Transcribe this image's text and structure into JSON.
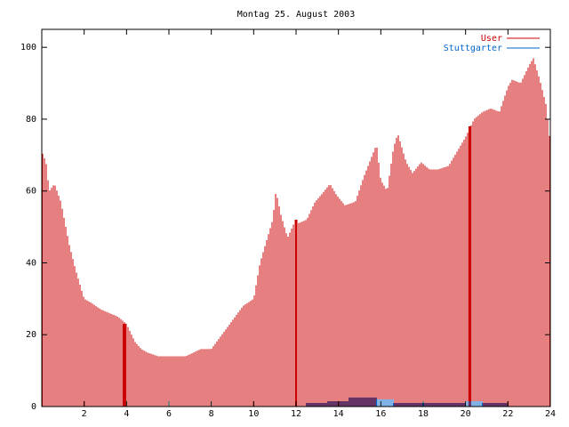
{
  "chart_data": {
    "type": "bar",
    "title": "Montag 25. August 2003",
    "xlabel": "",
    "ylabel": "",
    "xlim": [
      0,
      24
    ],
    "ylim": [
      0,
      105
    ],
    "x_ticks": [
      2,
      4,
      6,
      8,
      10,
      12,
      14,
      16,
      18,
      20,
      22,
      24
    ],
    "y_ticks": [
      0,
      20,
      40,
      60,
      80,
      100
    ],
    "grid": false,
    "legend_position": "top-right",
    "colors": {
      "User": "#cc0000",
      "Stuttgarter": "#0066cc",
      "frame": "#000000"
    },
    "series": [
      {
        "name": "User",
        "style": "impulses",
        "knots": [
          [
            0.0,
            71
          ],
          [
            0.2,
            68
          ],
          [
            0.35,
            60
          ],
          [
            0.6,
            62
          ],
          [
            0.9,
            57
          ],
          [
            1.3,
            45
          ],
          [
            1.6,
            38
          ],
          [
            2.0,
            30
          ],
          [
            2.3,
            29
          ],
          [
            2.8,
            27
          ],
          [
            3.2,
            26
          ],
          [
            3.6,
            25
          ],
          [
            4.0,
            23
          ],
          [
            4.4,
            18
          ],
          [
            4.7,
            16
          ],
          [
            5.0,
            15
          ],
          [
            5.5,
            14
          ],
          [
            6.0,
            14
          ],
          [
            6.8,
            14
          ],
          [
            7.5,
            16
          ],
          [
            8.0,
            16
          ],
          [
            8.5,
            20
          ],
          [
            9.0,
            24
          ],
          [
            9.5,
            28
          ],
          [
            10.0,
            30
          ],
          [
            10.3,
            40
          ],
          [
            10.6,
            46
          ],
          [
            10.9,
            52
          ],
          [
            11.05,
            60
          ],
          [
            11.3,
            53
          ],
          [
            11.6,
            47
          ],
          [
            11.9,
            51
          ],
          [
            12.1,
            51
          ],
          [
            12.5,
            52
          ],
          [
            12.9,
            57
          ],
          [
            13.2,
            59
          ],
          [
            13.6,
            62
          ],
          [
            13.9,
            59
          ],
          [
            14.3,
            56
          ],
          [
            14.8,
            57
          ],
          [
            15.2,
            64
          ],
          [
            15.6,
            70
          ],
          [
            15.8,
            73
          ],
          [
            16.0,
            63
          ],
          [
            16.3,
            60
          ],
          [
            16.6,
            72
          ],
          [
            16.8,
            76
          ],
          [
            17.2,
            68
          ],
          [
            17.5,
            65
          ],
          [
            17.9,
            68
          ],
          [
            18.3,
            66
          ],
          [
            18.7,
            66
          ],
          [
            19.2,
            67
          ],
          [
            19.6,
            71
          ],
          [
            20.0,
            75
          ],
          [
            20.4,
            80
          ],
          [
            20.8,
            82
          ],
          [
            21.2,
            83
          ],
          [
            21.6,
            82
          ],
          [
            22.0,
            89
          ],
          [
            22.2,
            91
          ],
          [
            22.6,
            90
          ],
          [
            23.0,
            95
          ],
          [
            23.2,
            97
          ],
          [
            23.5,
            91
          ],
          [
            23.8,
            84
          ],
          [
            24.0,
            73
          ]
        ],
        "spikes": [
          {
            "x": 3.9,
            "value": 23
          },
          {
            "x": 12.0,
            "value": 52
          },
          {
            "x": 20.2,
            "value": 78
          }
        ]
      },
      {
        "name": "Stuttgarter",
        "style": "impulses",
        "segments": [
          {
            "from": 12.5,
            "to": 13.5,
            "value": 1
          },
          {
            "from": 13.5,
            "to": 14.5,
            "value": 1.5
          },
          {
            "from": 14.5,
            "to": 15.8,
            "value": 2.5
          },
          {
            "from": 15.8,
            "to": 16.6,
            "value": 2
          },
          {
            "from": 16.6,
            "to": 20.0,
            "value": 1
          },
          {
            "from": 20.0,
            "to": 20.8,
            "value": 1.5
          },
          {
            "from": 20.8,
            "to": 22.0,
            "value": 1
          }
        ]
      }
    ]
  }
}
